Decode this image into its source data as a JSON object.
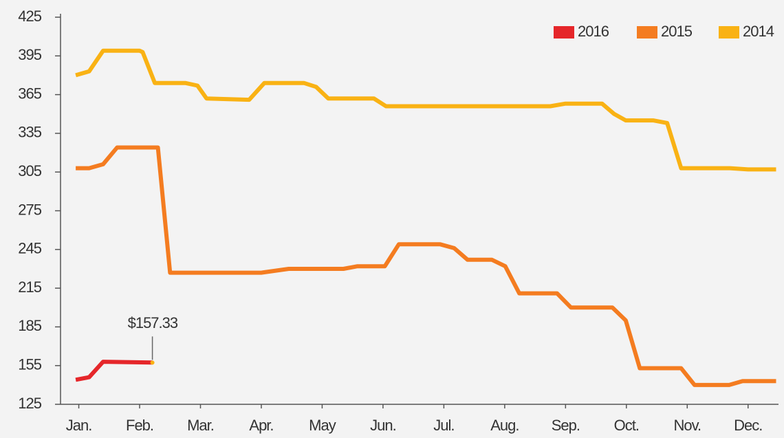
{
  "chart_data": {
    "type": "line",
    "xlim": [
      -0.3,
      11.5
    ],
    "xticks": [
      {
        "value": 0,
        "label": "Jan."
      },
      {
        "value": 1,
        "label": "Feb."
      },
      {
        "value": 2,
        "label": "Mar."
      },
      {
        "value": 3,
        "label": "Apr."
      },
      {
        "value": 4,
        "label": "May"
      },
      {
        "value": 5,
        "label": "Jun."
      },
      {
        "value": 6,
        "label": "Jul."
      },
      {
        "value": 7,
        "label": "Aug."
      },
      {
        "value": 8,
        "label": "Sep."
      },
      {
        "value": 9,
        "label": "Oct."
      },
      {
        "value": 10,
        "label": "Nov."
      },
      {
        "value": 11,
        "label": "Dec."
      }
    ],
    "ylim": [
      125,
      425
    ],
    "yticks": [
      125,
      155,
      185,
      215,
      245,
      275,
      305,
      335,
      365,
      395,
      425
    ],
    "grid": false,
    "legend": "top-right",
    "series": [
      {
        "name": "2016",
        "color": "#e5262a",
        "x": [
          -0.05,
          0.17,
          0.4,
          1.21
        ],
        "values": [
          144,
          146,
          158,
          157.33
        ]
      },
      {
        "name": "2015",
        "color": "#f47c20",
        "x": [
          -0.05,
          0.17,
          0.4,
          0.63,
          1.3,
          1.5,
          3.0,
          3.45,
          4.35,
          4.58,
          5.03,
          5.26,
          5.94,
          6.17,
          6.39,
          6.79,
          7.01,
          7.24,
          7.86,
          8.09,
          8.77,
          8.99,
          9.22,
          9.9,
          10.12,
          10.69,
          10.91,
          11.46
        ],
        "values": [
          308,
          308,
          311,
          324,
          324,
          227,
          227,
          230,
          230,
          232,
          232,
          249,
          249,
          246,
          237,
          237,
          232,
          211,
          211,
          200,
          200,
          190,
          153,
          153,
          140,
          140,
          143,
          143
        ]
      },
      {
        "name": "2014",
        "color": "#f9b214",
        "x": [
          -0.05,
          0.17,
          0.4,
          1.0,
          1.05,
          1.25,
          1.75,
          1.95,
          2.1,
          2.8,
          3.05,
          3.7,
          3.9,
          4.1,
          4.85,
          5.05,
          7.75,
          8.0,
          8.6,
          8.8,
          8.99,
          9.44,
          9.67,
          9.9,
          10.7,
          11.0,
          11.46
        ],
        "values": [
          380,
          383,
          399,
          399,
          398,
          374,
          374,
          372,
          362,
          361,
          374,
          374,
          371,
          362,
          362,
          356,
          356,
          358,
          358,
          350,
          345,
          345,
          343,
          308,
          308,
          307,
          307
        ]
      }
    ],
    "annotations": [
      {
        "text": "$157.33"
      }
    ]
  }
}
